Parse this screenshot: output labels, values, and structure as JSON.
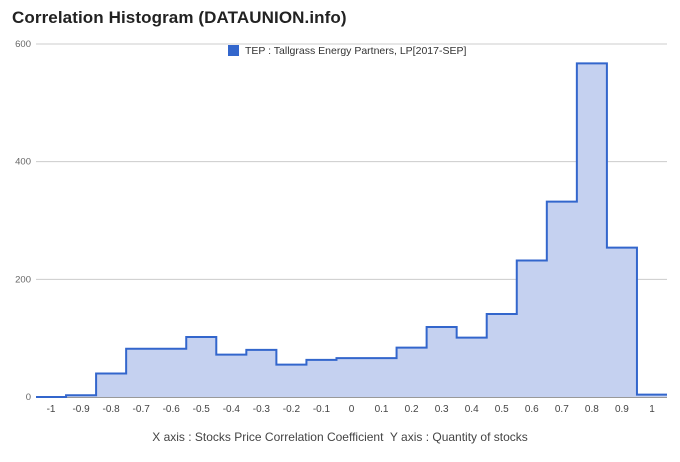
{
  "chart_data": {
    "type": "area",
    "title": "Correlation Histogram (DATAUNION.info)",
    "legend": {
      "label": "TEP : Tallgrass Energy Partners, LP[2017-SEP]",
      "position": "top",
      "color": "#3366cc"
    },
    "xlabel": "X axis : Stocks Price Correlation Coefficient",
    "ylabel": "Y axis : Quantity of stocks",
    "xlim": [
      -1.05,
      1.05
    ],
    "ylim": [
      0,
      600
    ],
    "grid": true,
    "step": "center",
    "x_ticks": [
      "-1",
      "-0.9",
      "-0.8",
      "-0.7",
      "-0.6",
      "-0.5",
      "-0.4",
      "-0.3",
      "-0.2",
      "-0.1",
      "0",
      "0.1",
      "0.2",
      "0.3",
      "0.4",
      "0.5",
      "0.6",
      "0.7",
      "0.8",
      "0.9",
      "1"
    ],
    "y_ticks": [
      "0",
      "200",
      "400",
      "600"
    ],
    "x": [
      -1,
      -0.9,
      -0.8,
      -0.7,
      -0.6,
      -0.5,
      -0.4,
      -0.3,
      -0.2,
      -0.1,
      0,
      0.1,
      0.2,
      0.3,
      0.4,
      0.5,
      0.6,
      0.7,
      0.8,
      0.9,
      1
    ],
    "series": [
      {
        "name": "TEP : Tallgrass Energy Partners, LP[2017-SEP]",
        "color": "#3366cc",
        "fill": "#c5d1f0",
        "values": [
          0,
          3,
          40,
          82,
          82,
          102,
          72,
          80,
          55,
          63,
          66,
          66,
          84,
          119,
          101,
          141,
          232,
          332,
          567,
          254,
          4
        ]
      }
    ]
  }
}
